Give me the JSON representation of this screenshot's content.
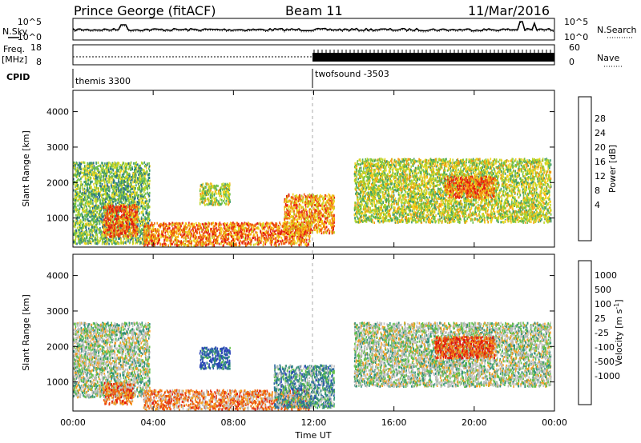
{
  "header": {
    "station": "Prince George (fitACF)",
    "beam": "Beam 11",
    "date": "11/Mar/2016"
  },
  "left_labels": {
    "nsky": "N.Sky",
    "freq": "Freq.",
    "freq_unit": "[MHz]",
    "cpid": "CPID"
  },
  "right_labels": {
    "nsearch": "N.Search",
    "nave": "Nave"
  },
  "noise_axis": {
    "left_ticks": [
      "10^5",
      "10^0"
    ],
    "right_ticks": [
      "10^5",
      "10^0"
    ]
  },
  "freq_axis": {
    "left_ticks": [
      "18",
      "8"
    ],
    "right_ticks": [
      "60",
      "0"
    ]
  },
  "cpid": {
    "segments": [
      {
        "label": "themis 3300",
        "start_hour": 0
      },
      {
        "label": "twofsound -3503",
        "start_hour": 12
      }
    ]
  },
  "time_axis": {
    "label": "Time UT",
    "ticks": [
      "00:00",
      "04:00",
      "08:00",
      "12:00",
      "16:00",
      "20:00",
      "00:00"
    ],
    "tick_hours": [
      0,
      4,
      8,
      12,
      16,
      20,
      24
    ],
    "range": [
      0,
      24
    ]
  },
  "chart_data": [
    {
      "type": "heatmap",
      "ylabel": "Slant Range [km]",
      "ylim": [
        180,
        4600
      ],
      "yticks": [
        "1000",
        "2000",
        "3000",
        "4000"
      ],
      "ytick_values": [
        1000,
        2000,
        3000,
        4000
      ],
      "colorbar_label": "Power [dB]",
      "colorbar_ticks": [
        "28",
        "24",
        "20",
        "16",
        "12",
        "8",
        "4"
      ],
      "colorbar_colors": [
        "#0b1fd8",
        "#1f4ab4",
        "#2a6e8a",
        "#3e9b6a",
        "#6cc04a",
        "#b9d728",
        "#f4d21c",
        "#f39a12",
        "#ef5a0e",
        "#e31a12"
      ],
      "xlim": [
        0,
        24
      ],
      "regions": [
        {
          "t0": 0.0,
          "t1": 3.8,
          "r0": 300,
          "r1": 2600,
          "level": 0.45
        },
        {
          "t0": 1.5,
          "t1": 3.2,
          "r0": 500,
          "r1": 1400,
          "level": 0.85
        },
        {
          "t0": 3.5,
          "t1": 11.8,
          "r0": 250,
          "r1": 900,
          "level": 0.8
        },
        {
          "t0": 6.3,
          "t1": 7.8,
          "r0": 1400,
          "r1": 2000,
          "level": 0.55
        },
        {
          "t0": 10.5,
          "t1": 13.0,
          "r0": 600,
          "r1": 1700,
          "level": 0.75
        },
        {
          "t0": 14.0,
          "t1": 23.8,
          "r0": 900,
          "r1": 2700,
          "level": 0.55
        },
        {
          "t0": 18.5,
          "t1": 21.0,
          "r0": 1600,
          "r1": 2200,
          "level": 0.85
        }
      ]
    },
    {
      "type": "heatmap",
      "ylabel": "Slant Range [km]",
      "ylim": [
        180,
        4600
      ],
      "yticks": [
        "1000",
        "2000",
        "3000",
        "4000"
      ],
      "ytick_values": [
        1000,
        2000,
        3000,
        4000
      ],
      "colorbar_label": "Velocity [m s",
      "colorbar_label_sup": "-1",
      "colorbar_label_end": "]",
      "colorbar_ticks": [
        "1000",
        "500",
        "100",
        "25",
        "-25",
        "-100",
        "-500",
        "-1000"
      ],
      "colorbar_colors": [
        "#2b45b8",
        "#2f6aa0",
        "#2f8f7a",
        "#62c04a",
        "#bfbfbf",
        "#bfbfbf",
        "#f4a020",
        "#f07010",
        "#e83c10",
        "#e01010"
      ],
      "xlim": [
        0,
        24
      ],
      "regions": [
        {
          "t0": 0.0,
          "t1": 3.8,
          "r0": 600,
          "r1": 2700,
          "level": 0.45
        },
        {
          "t0": 1.5,
          "t1": 3.0,
          "r0": 400,
          "r1": 1000,
          "level": 0.75
        },
        {
          "t0": 3.5,
          "t1": 11.8,
          "r0": 250,
          "r1": 800,
          "level": 0.7
        },
        {
          "t0": 6.3,
          "t1": 7.8,
          "r0": 1400,
          "r1": 2000,
          "level": 0.1
        },
        {
          "t0": 10.0,
          "t1": 13.0,
          "r0": 300,
          "r1": 1500,
          "level": 0.3
        },
        {
          "t0": 14.0,
          "t1": 23.8,
          "r0": 900,
          "r1": 2700,
          "level": 0.45
        },
        {
          "t0": 18.0,
          "t1": 21.0,
          "r0": 1700,
          "r1": 2300,
          "level": 0.85
        }
      ]
    }
  ]
}
